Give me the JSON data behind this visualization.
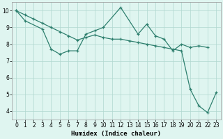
{
  "xlabel": "Humidex (Indice chaleur)",
  "line1_x": [
    0,
    1,
    3,
    4,
    5,
    6,
    7,
    8,
    9,
    10,
    12,
    14,
    15,
    16,
    17,
    18,
    19,
    20,
    21,
    22
  ],
  "line1_y": [
    10.0,
    9.4,
    8.9,
    7.7,
    7.4,
    7.6,
    7.6,
    8.6,
    8.8,
    9.0,
    10.2,
    8.6,
    9.2,
    8.5,
    8.3,
    7.6,
    8.0,
    7.8,
    7.9,
    7.8
  ],
  "line2_x": [
    0,
    1,
    2,
    3,
    4,
    5,
    6,
    7,
    8,
    9,
    10,
    11,
    12,
    13,
    14,
    15,
    16,
    17,
    18,
    19,
    20,
    21,
    22,
    23
  ],
  "line2_y": [
    10.0,
    9.75,
    9.5,
    9.25,
    9.0,
    8.75,
    8.5,
    8.25,
    8.4,
    8.55,
    8.4,
    8.3,
    8.3,
    8.2,
    8.1,
    8.0,
    7.9,
    7.8,
    7.7,
    7.6,
    5.3,
    4.3,
    3.9,
    5.1
  ],
  "line_color": "#2e7f6e",
  "bg_color": "#dff5f0",
  "grid_color": "#b0d8d0",
  "ylim": [
    3.5,
    10.5
  ],
  "xlim": [
    -0.5,
    23.5
  ],
  "yticks": [
    4,
    5,
    6,
    7,
    8,
    9,
    10
  ],
  "xticks": [
    0,
    1,
    2,
    3,
    4,
    5,
    6,
    7,
    8,
    9,
    10,
    11,
    12,
    13,
    14,
    15,
    16,
    17,
    18,
    19,
    20,
    21,
    22,
    23
  ]
}
